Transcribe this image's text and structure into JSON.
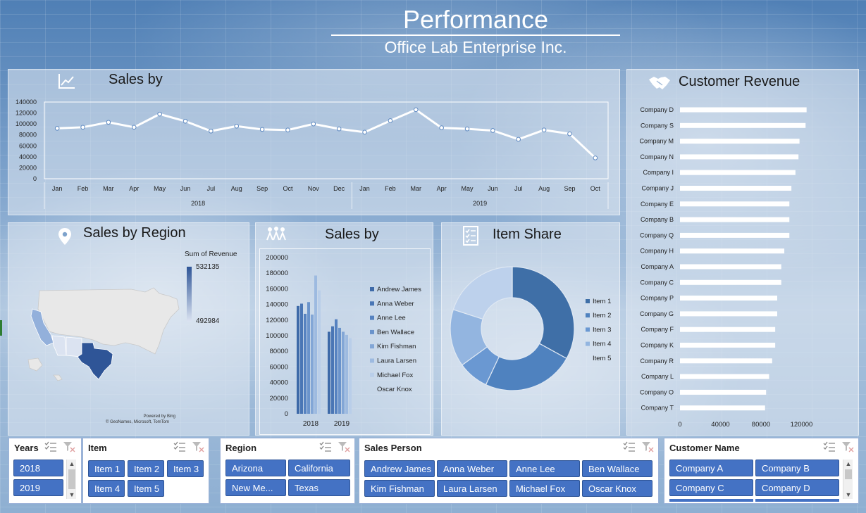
{
  "header": {
    "title": "Performance",
    "subtitle": "Office Lab Enterprise Inc."
  },
  "colors": {
    "accent": "#4472c4",
    "map_high": "#2f5597",
    "map_low": "#dbe3f1"
  },
  "sales_trend": {
    "title": "Sales by",
    "icon": "line-chart-icon"
  },
  "sales_region": {
    "title": "Sales by Region",
    "icon": "location-pin-icon",
    "legend_title": "Sum of Revenue",
    "legend_max": "532135",
    "legend_min": "492984",
    "attribution_1": "Powered by Bing",
    "attribution_2": "© GeoNames, Microsoft, TomTom"
  },
  "sales_person_chart": {
    "title": "Sales by",
    "icon": "team-icon"
  },
  "item_share": {
    "title": "Item Share",
    "icon": "checklist-icon"
  },
  "customer_revenue": {
    "title": "Customer Revenue",
    "icon": "handshake-icon"
  },
  "chart_data": [
    {
      "id": "sales-trend",
      "type": "line",
      "title": "",
      "x": [
        "Jan",
        "Feb",
        "Mar",
        "Apr",
        "May",
        "Jun",
        "Jul",
        "Aug",
        "Sep",
        "Oct",
        "Nov",
        "Dec",
        "Jan",
        "Feb",
        "Mar",
        "Apr",
        "May",
        "Jun",
        "Jul",
        "Aug",
        "Sep",
        "Oct"
      ],
      "groups": [
        {
          "label": "2018",
          "count": 12
        },
        {
          "label": "2019",
          "count": 10
        }
      ],
      "values": [
        92000,
        94000,
        103000,
        94000,
        118000,
        105000,
        87000,
        96000,
        90000,
        89000,
        100000,
        91000,
        85000,
        106000,
        126000,
        93000,
        91000,
        88000,
        72000,
        89000,
        82000,
        38000
      ],
      "yticks": [
        "140000",
        "120000",
        "100000",
        "80000",
        "60000",
        "40000",
        "20000",
        "0"
      ],
      "ylim": [
        0,
        140000
      ],
      "grid": false
    },
    {
      "id": "sales-by-person",
      "type": "bar",
      "categories": [
        "2018",
        "2019"
      ],
      "series": [
        {
          "name": "Andrew James",
          "values": [
            138000,
            105000
          ],
          "color": "#3e6aa8"
        },
        {
          "name": "Anna Weber",
          "values": [
            141000,
            112000
          ],
          "color": "#4a76b5"
        },
        {
          "name": "Anne Lee",
          "values": [
            128000,
            121000
          ],
          "color": "#5682c0"
        },
        {
          "name": "Ben Wallace",
          "values": [
            143000,
            110000
          ],
          "color": "#6a93cb"
        },
        {
          "name": "Kim Fishman",
          "values": [
            127000,
            105000
          ],
          "color": "#82a6d6"
        },
        {
          "name": "Laura Larsen",
          "values": [
            177000,
            101000
          ],
          "color": "#9dbae0"
        },
        {
          "name": "Michael Fox",
          "values": [
            158000,
            97000
          ],
          "color": "#b9cee9"
        },
        {
          "name": "Oscar Knox",
          "values": [
            0,
            0
          ],
          "color": "#d5e2f3"
        }
      ],
      "yticks": [
        "200000",
        "180000",
        "160000",
        "140000",
        "120000",
        "100000",
        "80000",
        "60000",
        "40000",
        "20000",
        "0"
      ],
      "ylim": [
        0,
        200000
      ],
      "legend": "right"
    },
    {
      "id": "item-share",
      "type": "pie",
      "donut": true,
      "labels": [
        "Item 1",
        "Item 2",
        "Item 3",
        "Item 4",
        "Item 5"
      ],
      "values": [
        33,
        24,
        8,
        15,
        20
      ],
      "colors": [
        "#3f6fa7",
        "#4f82bf",
        "#6a98d2",
        "#93b5e0",
        "#bdd1ec"
      ],
      "legend": "right"
    },
    {
      "id": "customer-revenue",
      "type": "bar",
      "orientation": "horizontal",
      "categories": [
        "Company D",
        "Company S",
        "Company M",
        "Company N",
        "Company I",
        "Company J",
        "Company E",
        "Company B",
        "Company Q",
        "Company H",
        "Company A",
        "Company C",
        "Company P",
        "Company G",
        "Company F",
        "Company K",
        "Company R",
        "Company L",
        "Company O",
        "Company T"
      ],
      "values": [
        125000,
        124000,
        118000,
        117000,
        114000,
        110000,
        108000,
        108000,
        108000,
        103000,
        100000,
        100000,
        96000,
        96000,
        94000,
        94000,
        91000,
        88000,
        85000,
        84000
      ],
      "xticks": [
        "0",
        "40000",
        "80000",
        "120000"
      ],
      "xlim": [
        0,
        160000
      ]
    }
  ],
  "slicers": {
    "years": {
      "title": "Years",
      "items": [
        "2018",
        "2019"
      ]
    },
    "item": {
      "title": "Item",
      "items": [
        "Item 1",
        "Item 2",
        "Item 3",
        "Item 4",
        "Item 5"
      ]
    },
    "region": {
      "title": "Region",
      "items": [
        "Arizona",
        "California",
        "New Me...",
        "Texas"
      ]
    },
    "sales_person": {
      "title": "Sales Person",
      "items": [
        "Andrew James",
        "Anna Weber",
        "Anne Lee",
        "Ben Wallace",
        "Kim Fishman",
        "Laura Larsen",
        "Michael Fox",
        "Oscar Knox"
      ]
    },
    "customer": {
      "title": "Customer Name",
      "items": [
        "Company A",
        "Company B",
        "Company C",
        "Company D"
      ]
    }
  }
}
